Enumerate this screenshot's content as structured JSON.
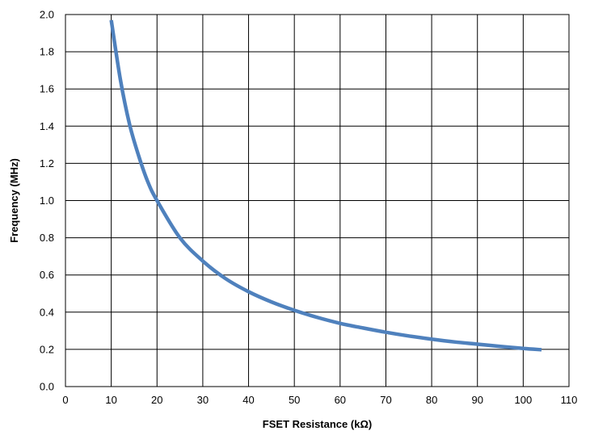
{
  "chart_data": {
    "type": "line",
    "title": "",
    "xlabel": "FSET Resistance (kΩ)",
    "ylabel": "Frequency (MHz)",
    "xlim": [
      0,
      110
    ],
    "ylim": [
      0,
      2.0
    ],
    "x_ticks": [
      "0",
      "10",
      "20",
      "30",
      "40",
      "50",
      "60",
      "70",
      "80",
      "90",
      "100",
      "110"
    ],
    "y_ticks": [
      "0.0",
      "0.2",
      "0.4",
      "0.6",
      "0.8",
      "1.0",
      "1.2",
      "1.4",
      "1.6",
      "1.8",
      "2.0"
    ],
    "grid": true,
    "legend": "none",
    "series": [
      {
        "color": "#4F81BD",
        "x": [
          10,
          12,
          14,
          16,
          18,
          20,
          25,
          30,
          35,
          40,
          45,
          50,
          55,
          60,
          65,
          70,
          75,
          80,
          85,
          90,
          95,
          100,
          104
        ],
        "y": [
          1.97,
          1.65,
          1.41,
          1.24,
          1.1,
          1.0,
          0.8,
          0.675,
          0.58,
          0.51,
          0.455,
          0.41,
          0.372,
          0.34,
          0.315,
          0.292,
          0.272,
          0.255,
          0.24,
          0.228,
          0.216,
          0.205,
          0.198
        ]
      }
    ]
  }
}
